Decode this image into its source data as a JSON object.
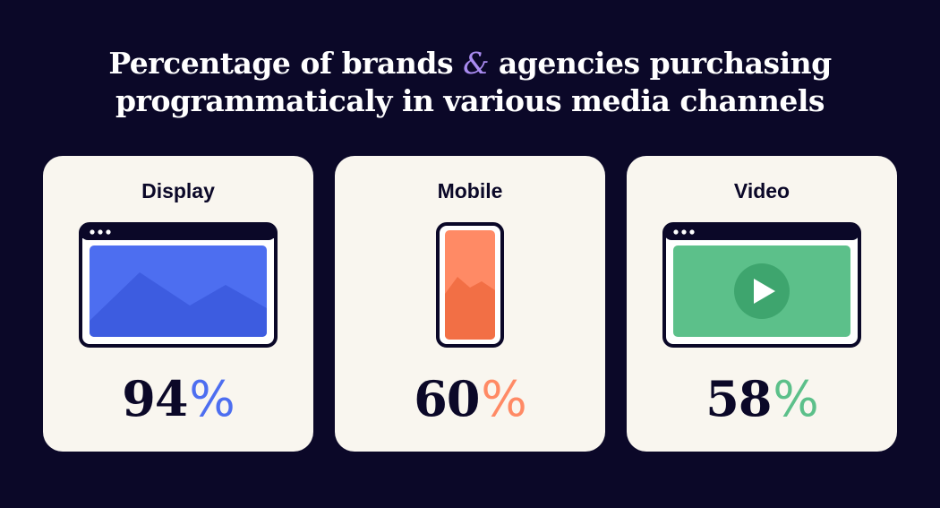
{
  "title": {
    "line1_before": "Percentage of brands ",
    "amp": "&",
    "line1_after": " agencies purchasing",
    "line2": "programmaticaly in various media channels"
  },
  "chart_data": {
    "type": "bar",
    "title": "Percentage of brands & agencies purchasing programmaticaly in various media channels",
    "categories": [
      "Display",
      "Mobile",
      "Video"
    ],
    "values": [
      94,
      60,
      58
    ],
    "unit": "%",
    "colors": [
      "#4d6ef0",
      "#ff8a65",
      "#5cc08a"
    ],
    "icons": [
      "browser-image-icon",
      "phone-image-icon",
      "browser-play-icon"
    ]
  },
  "cards": [
    {
      "label": "Display",
      "value": "94",
      "pct": "%",
      "color": "#4d6ef0"
    },
    {
      "label": "Mobile",
      "value": "60",
      "pct": "%",
      "color": "#ff8a65"
    },
    {
      "label": "Video",
      "value": "58",
      "pct": "%",
      "color": "#5cc08a"
    }
  ],
  "colors": {
    "background": "#0b0828",
    "card": "#f9f6ef",
    "amp_accent": "#a98bf0"
  }
}
